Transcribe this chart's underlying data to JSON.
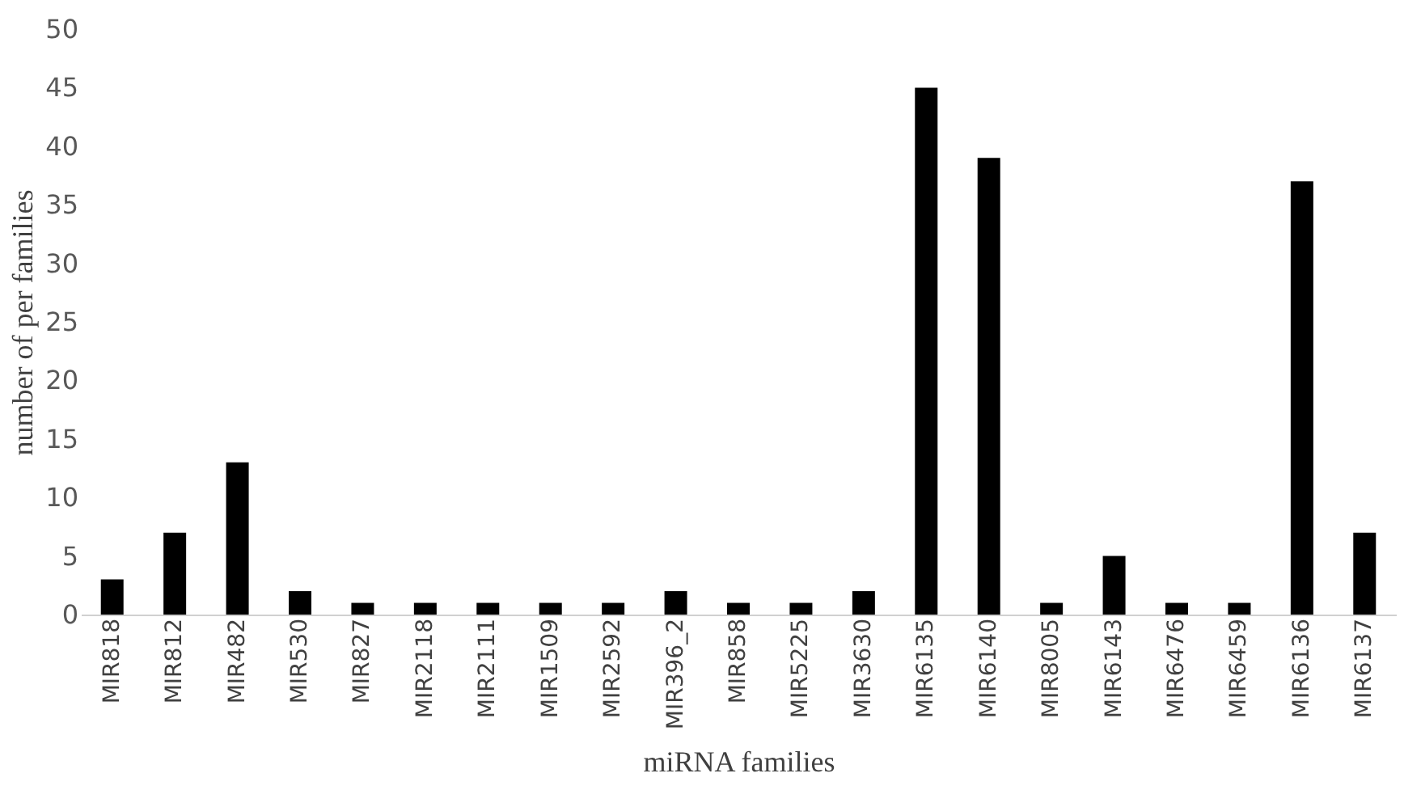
{
  "chart_data": {
    "type": "bar",
    "xlabel": "miRNA families",
    "ylabel": "number of per families",
    "categories": [
      "MIR818",
      "MIR812",
      "MIR482",
      "MIR530",
      "MIR827",
      "MIR2118",
      "MIR2111",
      "MIR1509",
      "MIR2592",
      "MIR396_2",
      "MIR858",
      "MIR5225",
      "MIR3630",
      "MIR6135",
      "MIR6140",
      "MIR8005",
      "MIR6143",
      "MIR6476",
      "MIR6459",
      "MIR6136",
      "MIR6137"
    ],
    "values": [
      3,
      7,
      13,
      2,
      1,
      1,
      1,
      1,
      1,
      2,
      1,
      1,
      2,
      45,
      39,
      1,
      5,
      1,
      1,
      37,
      7
    ],
    "color": "#000000",
    "ylim": [
      0,
      50
    ],
    "yticks": [
      0,
      5,
      10,
      15,
      20,
      25,
      30,
      35,
      40,
      45,
      50
    ],
    "grid": false
  }
}
